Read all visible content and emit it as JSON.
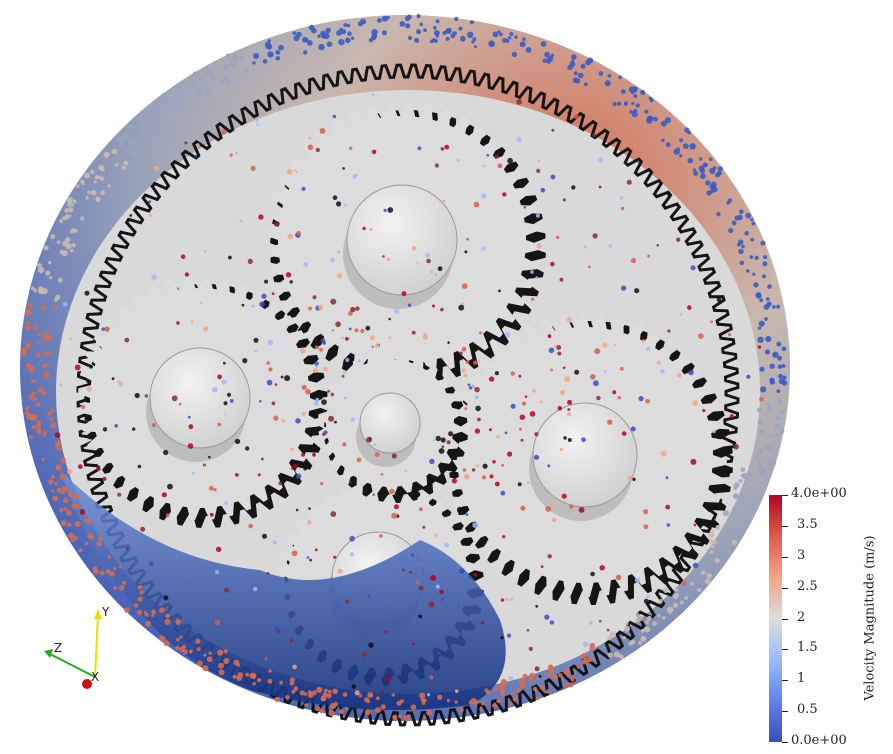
{
  "colorbar": {
    "title": "Velocity Magnitude (m/s)",
    "min": 0,
    "max": 4,
    "tick_labels": [
      "4.0e+00",
      "3.5",
      "3",
      "2.5",
      "2",
      "1.5",
      "1",
      "0.5",
      "0.0e+00"
    ],
    "colormap": [
      "#b40426",
      "#dc5d4a",
      "#f6a385",
      "#dddddd",
      "#9bbcff",
      "#6282ea",
      "#3b4cc0"
    ]
  },
  "axes_triad": {
    "labels": [
      "Y",
      "Z",
      "X"
    ],
    "colors": {
      "Y": "#e8e000",
      "Z": "#22aa22",
      "X": "#d01010"
    }
  },
  "scene": {
    "subject": "gearbox-with-particles",
    "gear_fill": "#dcdcdc",
    "tooth_shadow": "#151515",
    "housing_colors": [
      "#c8bfb8",
      "#d86b4e",
      "#3a5cc4"
    ]
  }
}
